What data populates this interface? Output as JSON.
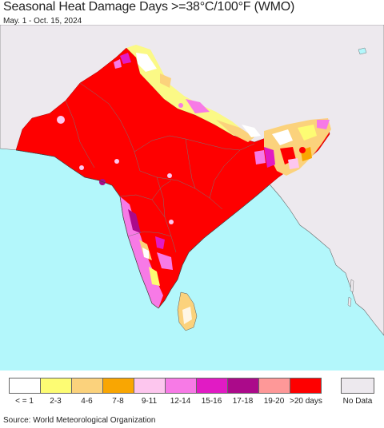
{
  "header": {
    "title": "Seasonal Heat Damage Days >=38°C/100°F (WMO)",
    "subtitle": "May. 1 - Oct. 15, 2024"
  },
  "map": {
    "colors": {
      "ocean": "#b3f7fb",
      "land_outside": "#ede9ee",
      "border": "#555555",
      "heat_max": "#fe0000",
      "magenta": "#e11bc4",
      "pink": "#f77ae6",
      "light_pink": "#fdc6ee",
      "orange": "#f9a602",
      "light_orange": "#fbd27c",
      "yellow": "#fdfc73",
      "white": "#ffffff"
    }
  },
  "legend": {
    "items": [
      {
        "label": "< = 1",
        "color": "#ffffff"
      },
      {
        "label": "2-3",
        "color": "#fdfc73"
      },
      {
        "label": "4-6",
        "color": "#fbd27c"
      },
      {
        "label": "7-8",
        "color": "#f9a602"
      },
      {
        "label": "9-11",
        "color": "#fdc6ee"
      },
      {
        "label": "12-14",
        "color": "#f77ae6"
      },
      {
        "label": "15-16",
        "color": "#e11bc4"
      },
      {
        "label": "17-18",
        "color": "#ab0a8a"
      },
      {
        "label": "19-20",
        "color": "#fe9898"
      },
      {
        "label": ">20 days",
        "color": "#fe0000"
      }
    ],
    "no_data": {
      "label": "No Data",
      "color": "#ede9ee"
    }
  },
  "footer": {
    "source": "Source: World Meteorological Organization"
  }
}
